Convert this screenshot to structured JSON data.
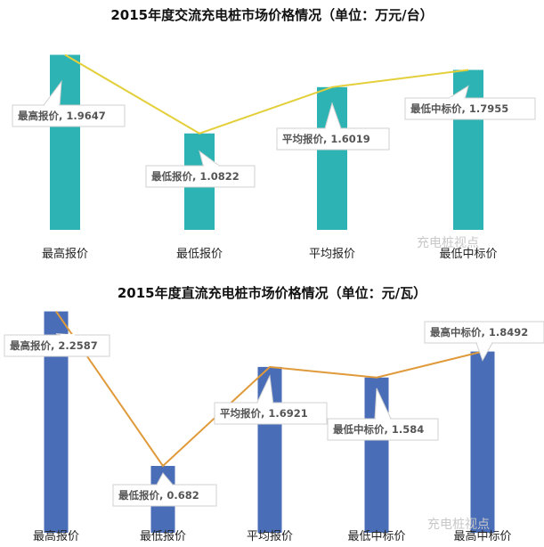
{
  "chart_data": [
    {
      "type": "bar",
      "title": "2015年度交流充电桩市场价格情况（单位：万元/台）",
      "categories": [
        "最高报价",
        "最低报价",
        "平均报价",
        "最低中标价"
      ],
      "values": [
        1.9647,
        1.0822,
        1.6019,
        1.7955
      ],
      "labels": [
        "最高报价, 1.9647",
        "最低报价, 1.0822",
        "平均报价, 1.6019",
        "最低中标价, 1.7955"
      ],
      "colors": {
        "bar": "#2db3b3",
        "line": "#e3cf3a"
      },
      "ylim": [
        0,
        2.0
      ],
      "grid": false
    },
    {
      "type": "bar",
      "title": "2015年度直流充电桩市场价格情况（单位：元/瓦）",
      "categories": [
        "最高报价",
        "最低报价",
        "平均报价",
        "最低中标价",
        "最高中标价"
      ],
      "values": [
        2.2587,
        0.682,
        1.6921,
        1.584,
        1.8492
      ],
      "labels": [
        "最高报价, 2.2587",
        "最低报价, 0.682",
        "平均报价, 1.6921",
        "最低中标价, 1.584",
        "最高中标价, 1.8492"
      ],
      "colors": {
        "bar": "#4a6db8",
        "line": "#e09a3a"
      },
      "ylim": [
        0,
        2.3
      ],
      "grid": false
    }
  ],
  "watermark": "充电桩视点"
}
